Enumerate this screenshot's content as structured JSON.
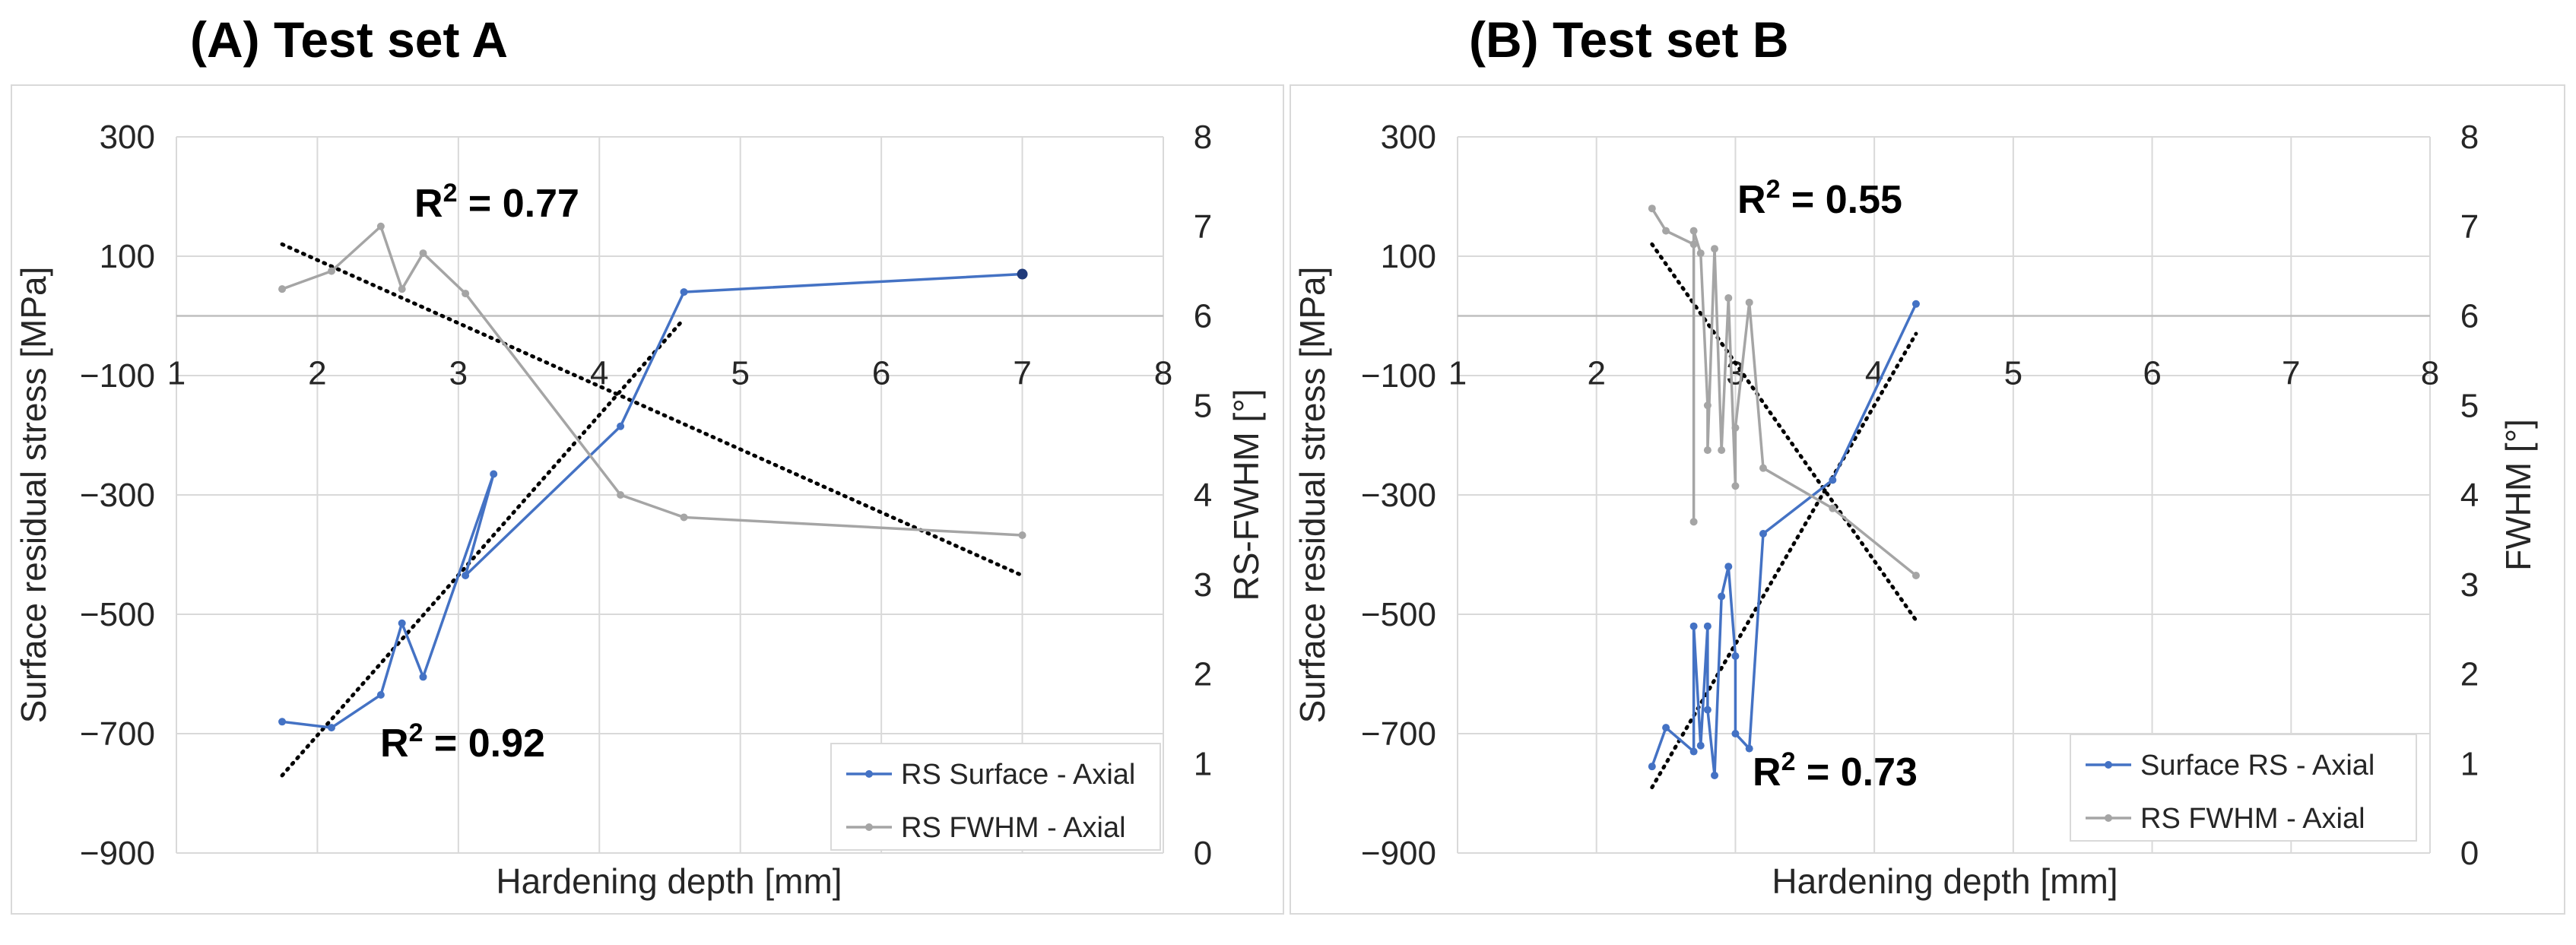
{
  "panels": [
    {
      "title": "(A) Test set A"
    },
    {
      "title": "(B) Test set B"
    }
  ],
  "chart_data": [
    {
      "type": "line",
      "title": "(A) Test set A",
      "xlabel": "Hardening depth [mm]",
      "ylabel": "Surface residual stress [MPa]",
      "y2label": "RS-FWHM [°]",
      "xlim": [
        1,
        8
      ],
      "ylim": [
        -900,
        300
      ],
      "y2lim": [
        0,
        8
      ],
      "x_ticks": [
        "1",
        "2",
        "3",
        "4",
        "5",
        "6",
        "7",
        "8"
      ],
      "y_ticks": [
        "300",
        "100",
        "−100",
        "−300",
        "−500",
        "−700",
        "−900"
      ],
      "y2_ticks": [
        "8",
        "7",
        "6",
        "5",
        "4",
        "3",
        "2",
        "1",
        "0"
      ],
      "grid": true,
      "legend_position": "bottom-right",
      "series": [
        {
          "name": "RS Surface - Axial",
          "axis": "left",
          "color": "#4472C4",
          "x": [
            1.75,
            2.1,
            2.45,
            2.6,
            2.75,
            3.25,
            3.05,
            4.15,
            4.6,
            7.0
          ],
          "y": [
            -680,
            -690,
            -635,
            -515,
            -605,
            -265,
            -435,
            -185,
            40,
            70
          ]
        },
        {
          "name": "RS FWHM - Axial",
          "axis": "right",
          "color": "#A5A5A5",
          "x": [
            1.75,
            2.1,
            2.45,
            2.6,
            2.75,
            3.05,
            4.15,
            4.6,
            7.0
          ],
          "y": [
            6.3,
            6.5,
            7.0,
            6.3,
            6.7,
            6.25,
            4.0,
            3.75,
            3.55
          ]
        }
      ],
      "trendlines": [
        {
          "of": "RS Surface - Axial",
          "axis": "left",
          "color": "#000000",
          "x": [
            1.75,
            4.6
          ],
          "y": [
            -770,
            -5
          ],
          "r2_label": "R",
          "r2_sup": "2",
          "r2_value": " = 0.92"
        },
        {
          "of": "RS FWHM - Axial",
          "axis": "right",
          "color": "#000000",
          "x": [
            1.75,
            7.0
          ],
          "y": [
            6.8,
            3.1
          ],
          "r2_label": "R",
          "r2_sup": "2",
          "r2_value": " = 0.77"
        }
      ]
    },
    {
      "type": "line",
      "title": "(B) Test set B",
      "xlabel": "Hardening depth [mm]",
      "ylabel": "Surface residual stress [MPa]",
      "y2label": "FWHM [°]",
      "xlim": [
        1,
        8
      ],
      "ylim": [
        -900,
        300
      ],
      "y2lim": [
        0,
        8
      ],
      "x_ticks": [
        "1",
        "2",
        "3",
        "4",
        "5",
        "6",
        "7",
        "8"
      ],
      "y_ticks": [
        "300",
        "100",
        "−100",
        "−300",
        "−500",
        "−700",
        "−900"
      ],
      "y2_ticks": [
        "8",
        "7",
        "6",
        "5",
        "4",
        "3",
        "2",
        "1",
        "0"
      ],
      "grid": true,
      "legend_position": "bottom-right",
      "series": [
        {
          "name": "Surface RS - Axial",
          "axis": "left",
          "color": "#4472C4",
          "x": [
            2.4,
            2.5,
            2.7,
            2.7,
            2.75,
            2.8,
            2.8,
            2.85,
            2.9,
            2.95,
            3.0,
            3.0,
            3.1,
            3.2,
            3.7,
            4.3
          ],
          "y": [
            -755,
            -690,
            -730,
            -520,
            -720,
            -520,
            -660,
            -770,
            -470,
            -420,
            -570,
            -700,
            -725,
            -365,
            -275,
            20
          ]
        },
        {
          "name": "RS FWHM - Axial",
          "axis": "right",
          "color": "#A5A5A5",
          "x": [
            2.4,
            2.5,
            2.7,
            2.7,
            2.7,
            2.75,
            2.8,
            2.8,
            2.85,
            2.9,
            2.95,
            3.0,
            3.0,
            3.1,
            3.2,
            3.7,
            4.3
          ],
          "y": [
            7.2,
            6.95,
            6.8,
            3.7,
            6.95,
            6.7,
            5.0,
            4.5,
            6.75,
            4.5,
            6.2,
            4.1,
            4.75,
            6.15,
            4.3,
            3.85,
            3.1
          ]
        }
      ],
      "trendlines": [
        {
          "of": "Surface RS - Axial",
          "axis": "left",
          "color": "#000000",
          "x": [
            2.4,
            4.3
          ],
          "y": [
            -790,
            -30
          ],
          "r2_label": "R",
          "r2_sup": "2",
          "r2_value": " = 0.73"
        },
        {
          "of": "RS FWHM - Axial",
          "axis": "right",
          "color": "#000000",
          "x": [
            2.4,
            4.3
          ],
          "y": [
            6.8,
            2.6
          ],
          "r2_label": "R",
          "r2_sup": "2",
          "r2_value": " = 0.55"
        }
      ]
    }
  ]
}
